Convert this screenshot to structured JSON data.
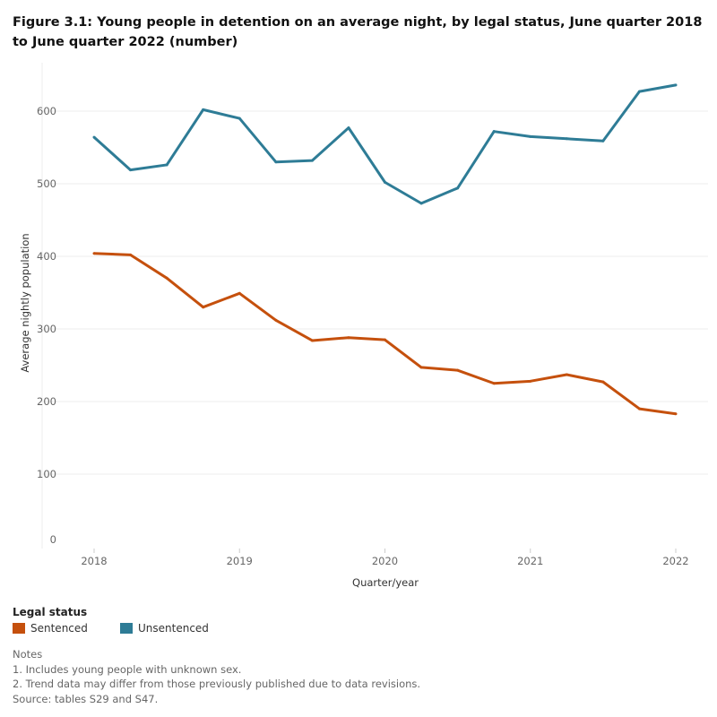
{
  "title": "Figure 3.1: Young people in detention on an average night, by legal status, June quarter 2018 to June quarter 2022 (number)",
  "colors": {
    "Sentenced": "#c5500d",
    "Unsentenced": "#2e7c96"
  },
  "chart_data": {
    "type": "line",
    "xlabel": "Quarter/year",
    "ylabel": "Average nightly population",
    "x": [
      "Jun 2018",
      "Sep 2018",
      "Dec 2018",
      "Mar 2019",
      "Jun 2019",
      "Sep 2019",
      "Dec 2019",
      "Mar 2020",
      "Jun 2020",
      "Sep 2020",
      "Dec 2020",
      "Mar 2021",
      "Jun 2021",
      "Sep 2021",
      "Dec 2021",
      "Mar 2022",
      "Jun 2022"
    ],
    "x_ticks": [
      "2018",
      "2019",
      "2020",
      "2021",
      "2022"
    ],
    "y_ticks": [
      "0",
      "100",
      "200",
      "300",
      "400",
      "500",
      "600"
    ],
    "ylim": [
      0,
      650
    ],
    "grid": true,
    "legend_placement": "bottom-left",
    "series": [
      {
        "name": "Sentenced",
        "values": [
          404,
          402,
          370,
          330,
          349,
          312,
          284,
          288,
          285,
          247,
          243,
          225,
          228,
          237,
          227,
          190,
          183
        ]
      },
      {
        "name": "Unsentenced",
        "values": [
          564,
          519,
          526,
          602,
          590,
          530,
          532,
          577,
          502,
          473,
          494,
          572,
          565,
          562,
          559,
          627,
          636
        ]
      }
    ]
  },
  "legend": {
    "title": "Legal status",
    "items": [
      "Sentenced",
      "Unsentenced"
    ]
  },
  "notes": [
    "Notes",
    "1. Includes young people with unknown sex.",
    "2. Trend data may differ from those previously published due to data revisions.",
    "Source: tables S29 and S47."
  ]
}
